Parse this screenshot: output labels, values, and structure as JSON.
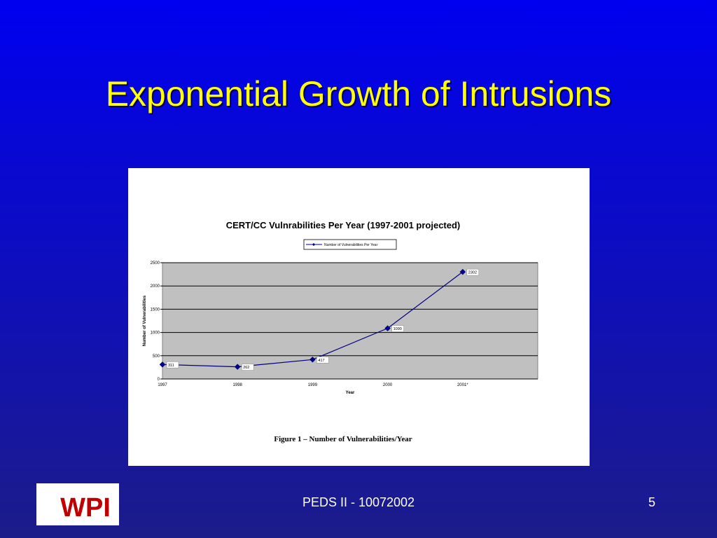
{
  "slide": {
    "title": "Exponential Growth of Intrusions",
    "footer": "PEDS II - 10072002",
    "page": "5",
    "logo": "WPI"
  },
  "chart_data": {
    "type": "line",
    "title": "CERT/CC Vulnrabilities Per Year (1997-2001 projected)",
    "x_label": "Year",
    "y_label": "Number of Vulnerabilities",
    "caption": "Figure 1 – Number of Vulnerabilities/Year",
    "categories": [
      "1997",
      "1998",
      "1999",
      "2000",
      "2001*"
    ],
    "series": [
      {
        "name": "Number of Vulnerabilities Per Year",
        "color": "#000080",
        "values": [
          311,
          262,
          417,
          1090,
          2302
        ]
      }
    ],
    "ylim": [
      0,
      2500
    ],
    "yticks": [
      0,
      500,
      1000,
      1500,
      2000,
      2500
    ],
    "grid": true,
    "legend": "top"
  }
}
